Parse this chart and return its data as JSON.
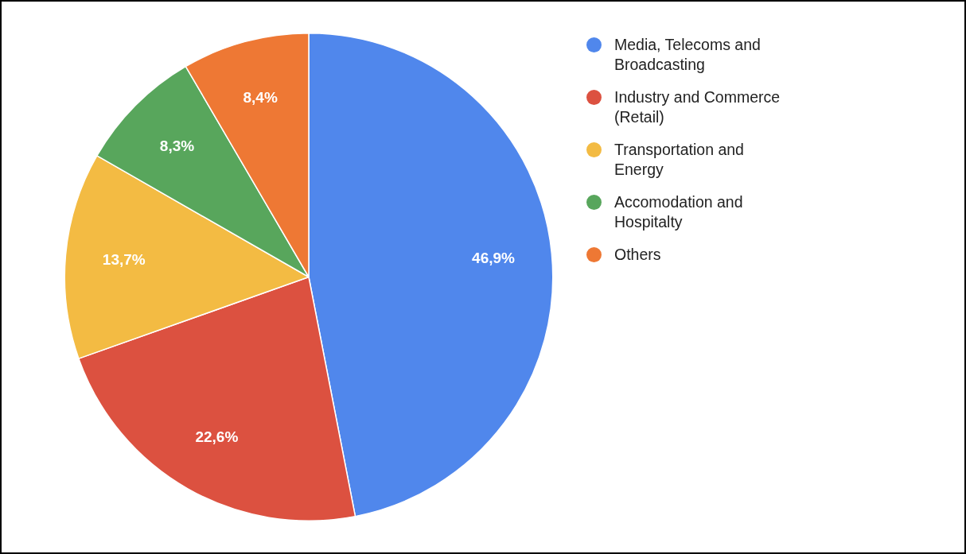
{
  "chart_data": {
    "type": "pie",
    "categories": [
      "Media, Telecoms and Broadcasting",
      "Industry and Commerce (Retail)",
      "Transportation and Energy",
      "Accomodation and Hospitalty",
      "Others"
    ],
    "values": [
      46.9,
      22.6,
      13.7,
      8.3,
      8.4
    ],
    "colors": [
      "#5087ec",
      "#dc5140",
      "#f3bb43",
      "#58a65c",
      "#ee7834"
    ],
    "value_labels": [
      "46,9%",
      "22,6%",
      "13,7%",
      "8,3%",
      "8,4%"
    ],
    "legend": "top right"
  }
}
